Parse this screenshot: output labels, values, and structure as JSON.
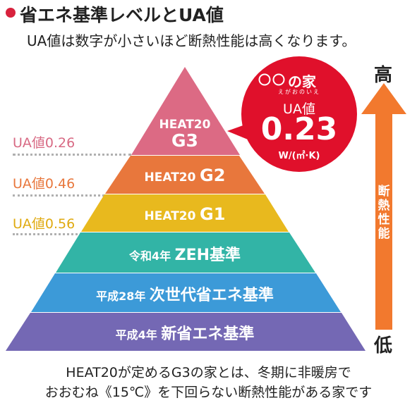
{
  "header": {
    "title": "省エネ基準レベルとUA値",
    "subtitle": "UA値は数字が小さいほど断熱性能は高くなります。"
  },
  "levels": [
    {
      "label": "UA値0.26",
      "color": "#dc6a84"
    },
    {
      "label": "UA値0.46",
      "color": "#e8773c"
    },
    {
      "label": "UA値0.56",
      "color": "#e4b21a"
    }
  ],
  "pyramid": {
    "tiers": [
      {
        "line1": "HEAT20",
        "line2": "G3",
        "color": "#dc6a84"
      },
      {
        "text_a": "HEAT20",
        "text_b": "G2",
        "color": "#e8773c"
      },
      {
        "text_a": "HEAT20",
        "text_b": "G1",
        "color": "#e8b91e"
      },
      {
        "text_a": "令和4年",
        "text_b": "ZEH基準",
        "color": "#32b4a6"
      },
      {
        "text_a": "平成28年",
        "text_b": "次世代省エネ基準",
        "color": "#3c9ad8"
      },
      {
        "text_a": "平成4年",
        "text_b": "新省エネ基準",
        "color": "#7468b4"
      }
    ]
  },
  "bubble": {
    "brand": "〇〇の家",
    "brand_sub": "えがおのいえ",
    "label": "UA値",
    "value": "0.23",
    "unit": "W/(㎡·K)",
    "color": "#e0102b"
  },
  "axis": {
    "high": "高",
    "low": "低",
    "vertical_label": [
      "断",
      "熱",
      "性",
      "能"
    ],
    "arrow_color": "#f2792e"
  },
  "footer": {
    "line1": "HEAT20が定めるG3の家とは、冬期に非暖房で",
    "line2": "おおむね《15℃》を下回らない断熱性能がある家です"
  }
}
